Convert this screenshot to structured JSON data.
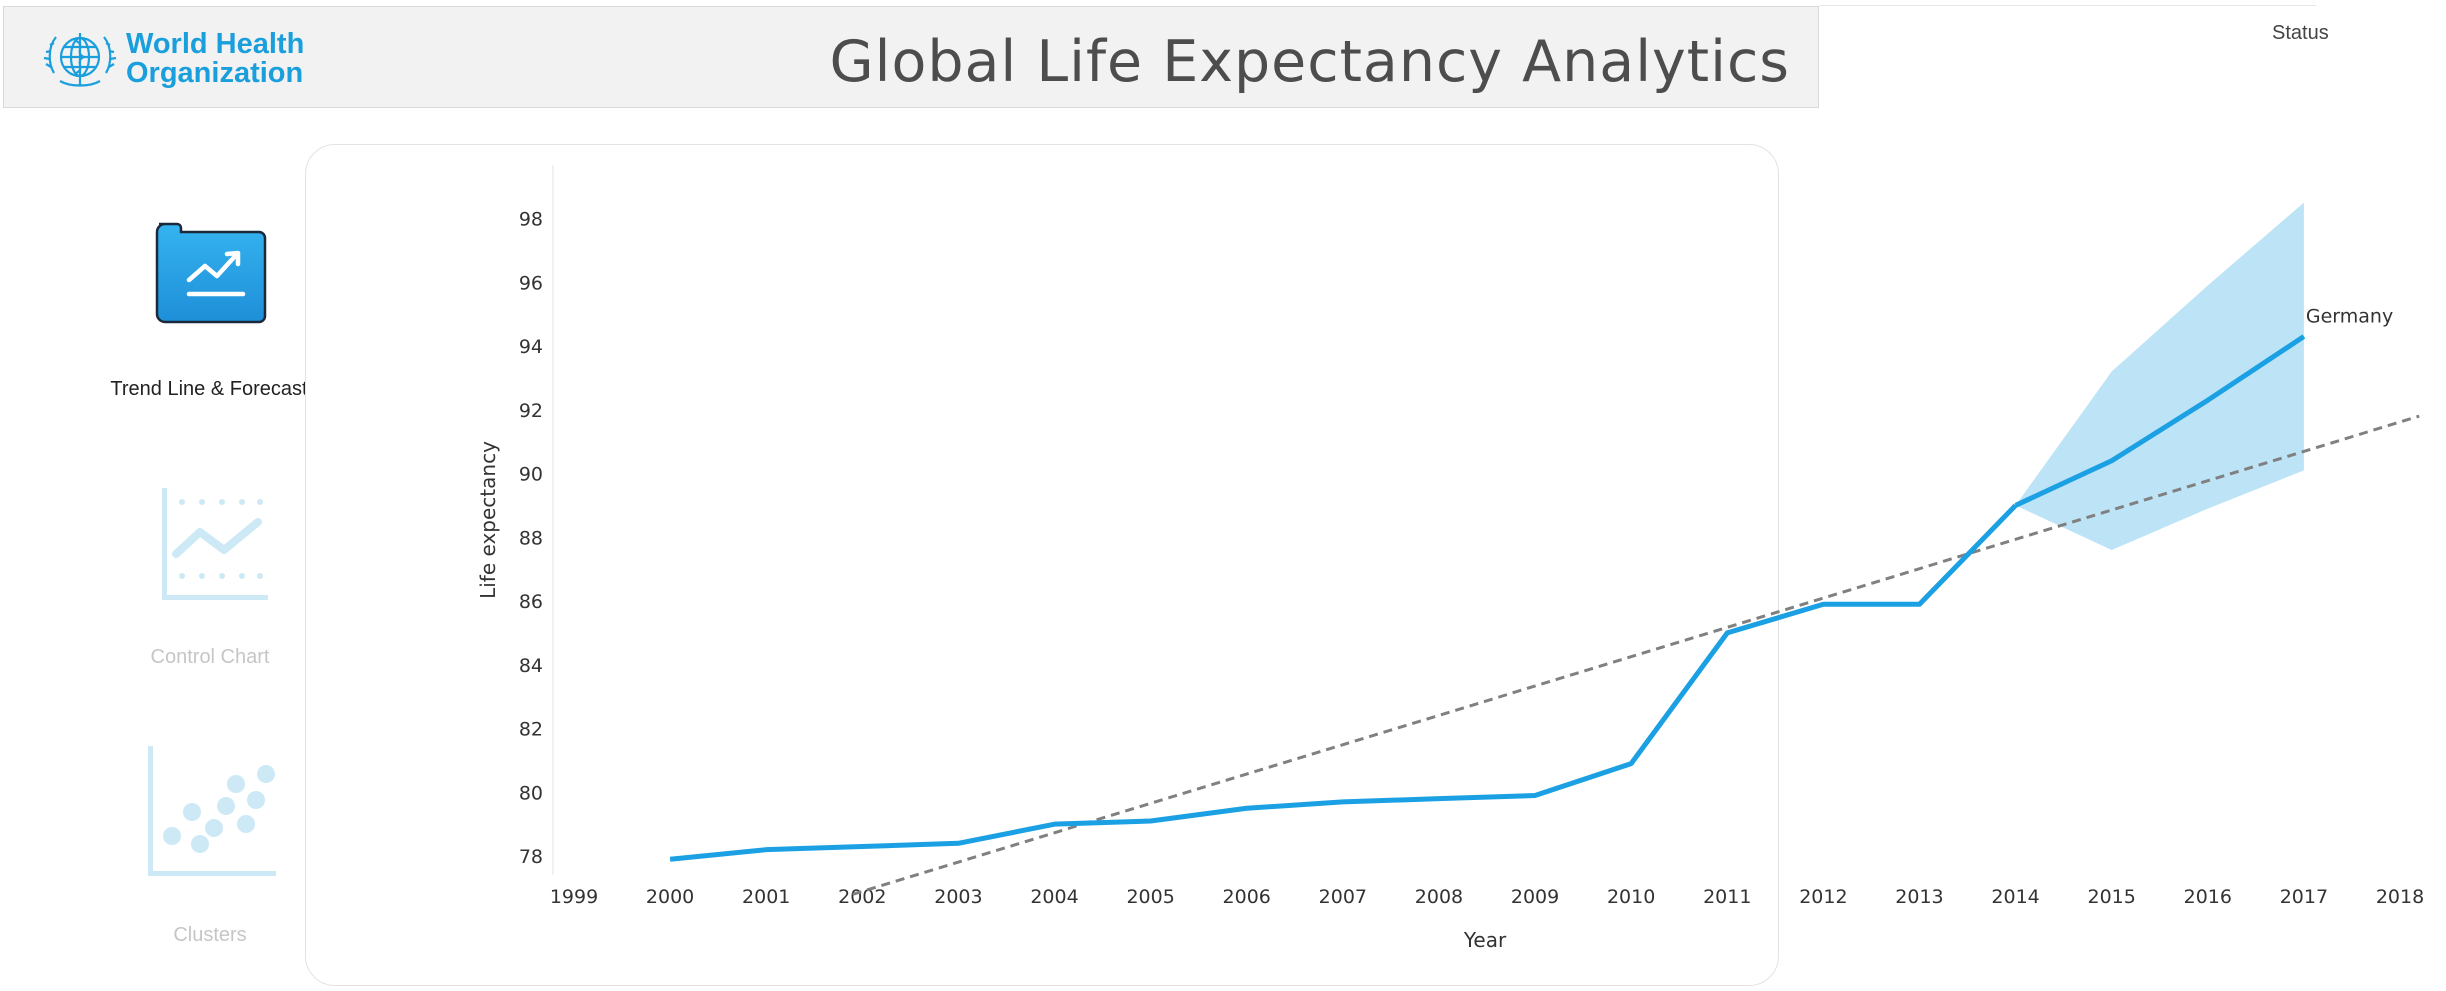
{
  "header": {
    "logo_line1": "World Health",
    "logo_line2": "Organization",
    "title": "Global Life Expectancy  Analytics",
    "status_label": "Status"
  },
  "nav": {
    "items": [
      {
        "label": "Trend Line & Forecast",
        "icon": "trend-line-icon",
        "active": true
      },
      {
        "label": "Control Chart",
        "icon": "control-chart-icon",
        "active": false
      },
      {
        "label": "Clusters",
        "icon": "clusters-icon",
        "active": false
      }
    ]
  },
  "colors": {
    "accent": "#1aa0e3",
    "forecast_band": "#bde3f6",
    "trend_line": "#808080",
    "nav_active_icon": "#29a8e8",
    "nav_inactive": "#cde9f6"
  },
  "chart_data": {
    "type": "line",
    "xlabel": "Year",
    "ylabel": "Life expectancy",
    "x_ticks": [
      "1999",
      "2000",
      "2001",
      "2002",
      "2003",
      "2004",
      "2005",
      "2006",
      "2007",
      "2008",
      "2009",
      "2010",
      "2011",
      "2012",
      "2013",
      "2014",
      "2015",
      "2016",
      "2017",
      "2018"
    ],
    "y_ticks": [
      "78",
      "80",
      "82",
      "84",
      "86",
      "88",
      "90",
      "92",
      "94",
      "96",
      "98"
    ],
    "xlim": [
      1999,
      2018
    ],
    "ylim": [
      77,
      99
    ],
    "grid": false,
    "series": [
      {
        "name": "Germany",
        "x": [
          2000,
          2001,
          2002,
          2003,
          2004,
          2005,
          2006,
          2007,
          2008,
          2009,
          2010,
          2011,
          2012,
          2013,
          2014
        ],
        "y": [
          77.9,
          78.2,
          78.3,
          78.4,
          79.0,
          79.1,
          79.5,
          79.7,
          79.8,
          79.9,
          80.9,
          85.0,
          85.9,
          85.9,
          89.0
        ]
      }
    ],
    "forecast": {
      "x": [
        2014,
        2015,
        2016,
        2017
      ],
      "y": [
        89.0,
        90.4,
        92.3,
        94.3
      ],
      "upper": [
        89.0,
        93.2,
        95.9,
        98.5
      ],
      "lower": [
        89.0,
        87.6,
        88.9,
        90.1
      ]
    },
    "trend_line": {
      "style": "dashed",
      "x": [
        2001.9,
        2018.2
      ],
      "y": [
        76.8,
        91.8
      ]
    }
  }
}
